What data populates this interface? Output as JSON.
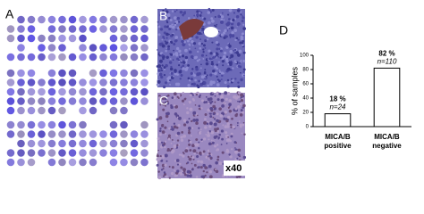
{
  "panel_labels": [
    "A",
    "B",
    "C",
    "D"
  ],
  "magnification": "x40",
  "chart_data": {
    "type": "bar",
    "ylabel": "% of samples",
    "categories": [
      "MICA/B\npositive",
      "MICA/B\nnegative"
    ],
    "values": [
      18,
      82
    ],
    "value_labels": [
      "18 %",
      "82 %"
    ],
    "n_labels": [
      "n=24",
      "n=110"
    ],
    "color": "#ffffff",
    "ylim": [
      0,
      100
    ],
    "yticks": [
      0,
      20,
      40,
      60,
      80,
      100
    ]
  }
}
